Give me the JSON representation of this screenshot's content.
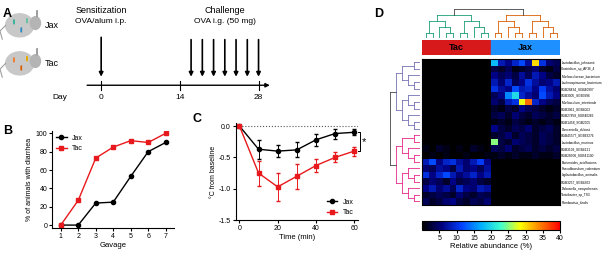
{
  "panel_labels": [
    "A",
    "B",
    "C",
    "D"
  ],
  "diagram": {
    "mice": [
      {
        "label": "Jax"
      },
      {
        "label": "Tac"
      }
    ],
    "sensitization": {
      "title": "Sensitization",
      "detail": "OVA/alum i.p.",
      "day": 0
    },
    "challenge": {
      "title": "Challenge",
      "detail": "OVA i.g. (50 mg)",
      "days": [
        16,
        18,
        20,
        22,
        24,
        26,
        28
      ]
    },
    "timeline": {
      "label": "Day",
      "ticks": [
        0,
        14,
        28
      ]
    }
  },
  "chart_data": [
    {
      "type": "line",
      "xlabel": "Gavage",
      "ylabel": "% of animals with diarrhea",
      "x": [
        1,
        2,
        3,
        4,
        5,
        6,
        7
      ],
      "series": [
        {
          "name": "Jax",
          "color": "#000000",
          "marker": "o",
          "line_style": "solid",
          "values": [
            0,
            0,
            24,
            25,
            53,
            80,
            90
          ]
        },
        {
          "name": "Tac",
          "color": "#e8191c",
          "marker": "s",
          "line_style": "solid",
          "values": [
            0,
            27,
            73,
            85,
            92,
            90,
            100
          ]
        }
      ],
      "xlim": [
        0.5,
        7.5
      ],
      "xticks": [
        1,
        2,
        3,
        4,
        5,
        6,
        7
      ],
      "ylim": [
        -3,
        103
      ],
      "yticks": [
        0,
        20,
        40,
        60,
        80,
        100
      ],
      "legend": "upper left"
    },
    {
      "type": "line",
      "xlabel": "Time (min)",
      "ylabel": "°C from baseline",
      "x": [
        0,
        10,
        20,
        30,
        40,
        50,
        60
      ],
      "series": [
        {
          "name": "Jax",
          "color": "#000000",
          "marker": "o",
          "line_style": "solid",
          "values": [
            0.0,
            -0.37,
            -0.4,
            -0.38,
            -0.22,
            -0.12,
            -0.1
          ],
          "errors": [
            0.0,
            0.15,
            0.1,
            0.12,
            0.1,
            0.08,
            0.05
          ]
        },
        {
          "name": "Tac",
          "color": "#e8191c",
          "marker": "s",
          "line_style": "solid",
          "values": [
            0.0,
            -0.75,
            -0.97,
            -0.8,
            -0.63,
            -0.5,
            -0.4
          ],
          "errors": [
            0.0,
            0.2,
            0.22,
            0.2,
            0.1,
            0.08,
            0.07
          ]
        }
      ],
      "hlines": [
        0.0
      ],
      "annotations": [
        {
          "text": "*"
        }
      ],
      "xlim": [
        -2,
        62
      ],
      "xticks": [
        0,
        20,
        40,
        60
      ],
      "ylim": [
        -1.5,
        0.05
      ],
      "yticks": [
        -1.5,
        -1.0,
        -0.5,
        0.0
      ],
      "legend": "lower right"
    },
    {
      "type": "heatmap",
      "groups": [
        {
          "name": "Tac",
          "color": "#d7191c",
          "columns": 10
        },
        {
          "name": "Jax",
          "color": "#1e90ff",
          "columns": 10
        }
      ],
      "row_labels": [
        "Lactobacillus_johnsonii",
        "Clostridium_sp_AF36_4",
        "Muribaculaceae_bacterium",
        "Lachnospiraceae_bacterium",
        "GGB28434_SGB40997",
        "GGB3005_SGB3996",
        "Muribaculum_intestinale",
        "GGB3061_SGB4063",
        "GGB27858_SGB40266",
        "GGB1458_SGB2005",
        "Duncaniella_dubosii",
        "GGB45577_SGB63276",
        "Lactobacillus_murinus",
        "GGB3109_SGB4121",
        "GGB28508_SGB41100",
        "Bacteroides_acidifaciens",
        "Faecalibaculum_rodentium",
        "Ligilactobacillus_animalis",
        "GGB3257_SGB4303",
        "Dubosiella_newyorkensis",
        "Turicibacter_sp_TS3",
        "Romboutsia_ilealis"
      ],
      "cells": [
        [
          0,
          0,
          0,
          0,
          0,
          0,
          0,
          0,
          0,
          0,
          18,
          8,
          6,
          9,
          12,
          7,
          30,
          10,
          5,
          4
        ],
        [
          0,
          0,
          0,
          0,
          0,
          0,
          0,
          0,
          0,
          0,
          3,
          2,
          4,
          1,
          2,
          3,
          5,
          2,
          1,
          3
        ],
        [
          0,
          0,
          0,
          0,
          0,
          0,
          0,
          0,
          0,
          0,
          6,
          4,
          5,
          3,
          7,
          4,
          8,
          6,
          3,
          2
        ],
        [
          0,
          0,
          0,
          0,
          0,
          0,
          0,
          0,
          0,
          0,
          8,
          5,
          9,
          4,
          6,
          10,
          7,
          5,
          6,
          8
        ],
        [
          0,
          0,
          0,
          0,
          0,
          0,
          0,
          0,
          0,
          0,
          10,
          7,
          6,
          12,
          8,
          9,
          6,
          11,
          7,
          5
        ],
        [
          0,
          0,
          0,
          0,
          0,
          0,
          0,
          0,
          0,
          0,
          4,
          6,
          15,
          20,
          9,
          7,
          5,
          12,
          8,
          6
        ],
        [
          0,
          0,
          0,
          0,
          0,
          0,
          0,
          0,
          0,
          0,
          5,
          3,
          8,
          10,
          28,
          35,
          9,
          6,
          4,
          3
        ],
        [
          0,
          0,
          0,
          0,
          0,
          0,
          0,
          0,
          0,
          0,
          2,
          1,
          3,
          2,
          6,
          4,
          3,
          2,
          1,
          2
        ],
        [
          0,
          0,
          0,
          0,
          0,
          0,
          0,
          0,
          0,
          0,
          3,
          4,
          2,
          5,
          3,
          2,
          4,
          3,
          2,
          3
        ],
        [
          0,
          0,
          0,
          0,
          0,
          0,
          0,
          0,
          0,
          0,
          1,
          2,
          1,
          3,
          2,
          1,
          2,
          1,
          2,
          1
        ],
        [
          0,
          0,
          0,
          0,
          0,
          0,
          0,
          0,
          0,
          0,
          6,
          3,
          2,
          4,
          3,
          5,
          2,
          3,
          4,
          2
        ],
        [
          0,
          0,
          0,
          0,
          0,
          0,
          0,
          0,
          0,
          0,
          2,
          3,
          5,
          2,
          4,
          3,
          2,
          4,
          3,
          2
        ],
        [
          0,
          0,
          0,
          0,
          0,
          0,
          0,
          0,
          0,
          0,
          25,
          3,
          2,
          5,
          4,
          3,
          2,
          4,
          3,
          2
        ],
        [
          1,
          0,
          2,
          1,
          0,
          1,
          0,
          2,
          1,
          0,
          4,
          3,
          5,
          2,
          3,
          4,
          2,
          3,
          2,
          3
        ],
        [
          0,
          1,
          0,
          1,
          0,
          0,
          1,
          0,
          0,
          1,
          1,
          2,
          1,
          2,
          1,
          1,
          2,
          1,
          1,
          2
        ],
        [
          8,
          12,
          6,
          9,
          10,
          7,
          5,
          8,
          11,
          6,
          0,
          0,
          0,
          0,
          0,
          0,
          0,
          0,
          0,
          0
        ],
        [
          5,
          4,
          7,
          6,
          3,
          8,
          5,
          6,
          4,
          7,
          0,
          0,
          0,
          0,
          0,
          0,
          0,
          0,
          0,
          0
        ],
        [
          10,
          6,
          9,
          12,
          8,
          5,
          7,
          9,
          6,
          8,
          0,
          0,
          0,
          0,
          0,
          0,
          0,
          0,
          0,
          0
        ],
        [
          3,
          5,
          4,
          2,
          6,
          3,
          4,
          5,
          3,
          2,
          0,
          0,
          0,
          0,
          0,
          0,
          0,
          0,
          0,
          0
        ],
        [
          6,
          8,
          5,
          7,
          4,
          9,
          6,
          5,
          8,
          7,
          0,
          0,
          0,
          0,
          0,
          0,
          0,
          0,
          0,
          0
        ],
        [
          2,
          3,
          4,
          3,
          2,
          5,
          3,
          2,
          4,
          3,
          0,
          0,
          0,
          0,
          0,
          0,
          0,
          0,
          0,
          0
        ],
        [
          4,
          2,
          3,
          5,
          6,
          3,
          2,
          4,
          3,
          5,
          0,
          0,
          0,
          0,
          0,
          0,
          0,
          0,
          0,
          0
        ]
      ],
      "colorbar_label": "Relative abundance (%)",
      "colorbar_range": [
        0,
        40
      ],
      "colorbar_ticks": [
        5,
        10,
        15,
        20,
        25,
        30,
        35,
        40
      ]
    }
  ]
}
